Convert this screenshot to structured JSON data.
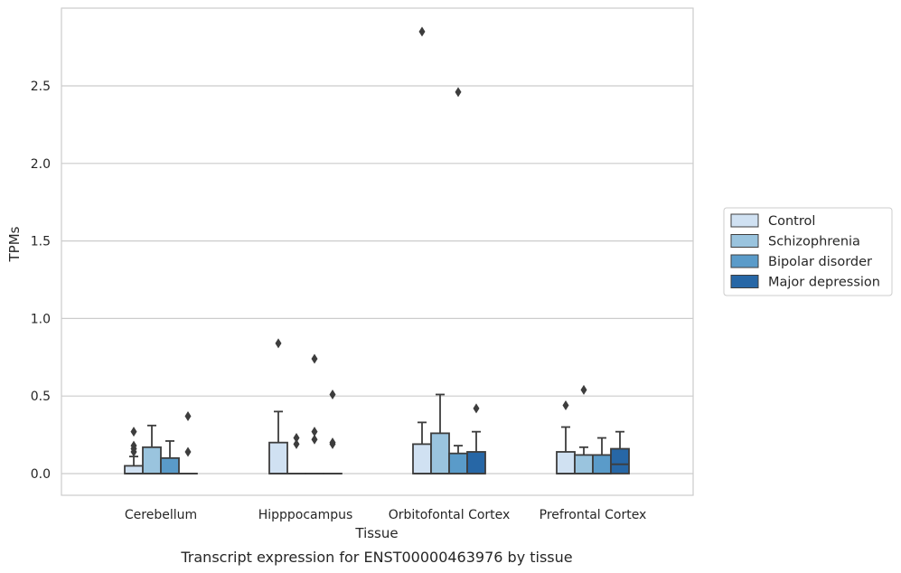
{
  "chart_data": {
    "type": "boxplot",
    "title": "Transcript expression for ENST00000463976 by tissue",
    "xlabel": "Tissue",
    "ylabel": "TPMs",
    "ylim": [
      -0.14,
      2.99
    ],
    "yticks": [
      0.0,
      0.5,
      1.0,
      1.5,
      2.0,
      2.5
    ],
    "ytick_labels": [
      "0.0",
      "0.5",
      "1.0",
      "1.5",
      "2.0",
      "2.5"
    ],
    "grid": "horizontal",
    "legend_placement": "right",
    "categories": [
      "Cerebellum",
      "Hipppocampus",
      "Orbitofontal Cortex",
      "Prefrontal Cortex"
    ],
    "series": [
      {
        "name": "Control",
        "color": "#d0e1f2",
        "boxes": [
          {
            "whislo": 0.0,
            "q1": 0.0,
            "med": 0.0,
            "q3": 0.05,
            "whishi": 0.11,
            "fliers": [
              0.14,
              0.16,
              0.18,
              0.27
            ]
          },
          {
            "whislo": 0.0,
            "q1": 0.0,
            "med": 0.0,
            "q3": 0.2,
            "whishi": 0.4,
            "fliers": [
              0.84
            ]
          },
          {
            "whislo": 0.0,
            "q1": 0.0,
            "med": 0.0,
            "q3": 0.19,
            "whishi": 0.33,
            "fliers": [
              2.85
            ]
          },
          {
            "whislo": 0.0,
            "q1": 0.0,
            "med": 0.0,
            "q3": 0.14,
            "whishi": 0.3,
            "fliers": [
              0.44
            ]
          }
        ]
      },
      {
        "name": "Schizophrenia",
        "color": "#9ac4de",
        "boxes": [
          {
            "whislo": 0.0,
            "q1": 0.0,
            "med": 0.0,
            "q3": 0.17,
            "whishi": 0.31,
            "fliers": []
          },
          {
            "whislo": 0.0,
            "q1": 0.0,
            "med": 0.0,
            "q3": 0.0,
            "whishi": 0.0,
            "fliers": [
              0.19,
              0.23
            ]
          },
          {
            "whislo": 0.0,
            "q1": 0.0,
            "med": 0.0,
            "q3": 0.26,
            "whishi": 0.51,
            "fliers": []
          },
          {
            "whislo": 0.0,
            "q1": 0.0,
            "med": 0.0,
            "q3": 0.12,
            "whishi": 0.17,
            "fliers": [
              0.54
            ]
          }
        ]
      },
      {
        "name": "Bipolar disorder",
        "color": "#5a9bc9",
        "boxes": [
          {
            "whislo": 0.0,
            "q1": 0.0,
            "med": 0.0,
            "q3": 0.1,
            "whishi": 0.21,
            "fliers": []
          },
          {
            "whislo": 0.0,
            "q1": 0.0,
            "med": 0.0,
            "q3": 0.0,
            "whishi": 0.0,
            "fliers": [
              0.22,
              0.27,
              0.74
            ]
          },
          {
            "whislo": 0.0,
            "q1": 0.0,
            "med": 0.0,
            "q3": 0.13,
            "whishi": 0.18,
            "fliers": [
              2.46
            ]
          },
          {
            "whislo": 0.0,
            "q1": 0.0,
            "med": 0.0,
            "q3": 0.12,
            "whishi": 0.23,
            "fliers": []
          }
        ]
      },
      {
        "name": "Major depression",
        "color": "#2767a6",
        "boxes": [
          {
            "whislo": 0.0,
            "q1": 0.0,
            "med": 0.0,
            "q3": 0.0,
            "whishi": 0.0,
            "fliers": [
              0.14,
              0.37
            ]
          },
          {
            "whislo": 0.0,
            "q1": 0.0,
            "med": 0.0,
            "q3": 0.0,
            "whishi": 0.0,
            "fliers": [
              0.19,
              0.2,
              0.51
            ]
          },
          {
            "whislo": 0.0,
            "q1": 0.0,
            "med": 0.0,
            "q3": 0.14,
            "whishi": 0.27,
            "fliers": [
              0.42
            ]
          },
          {
            "whislo": 0.0,
            "q1": 0.0,
            "med": 0.06,
            "q3": 0.16,
            "whishi": 0.27,
            "fliers": []
          }
        ]
      }
    ]
  }
}
